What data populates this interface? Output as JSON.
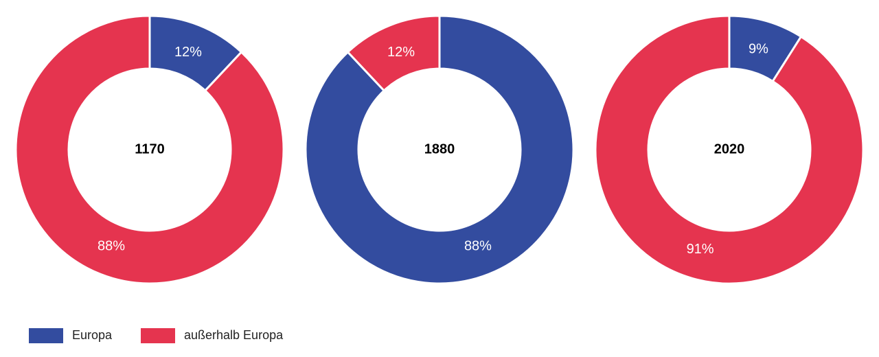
{
  "chart_data": [
    {
      "type": "pie",
      "title": "1170",
      "categories": [
        "Europa",
        "außerhalb Europa"
      ],
      "colors": [
        "#334c9f",
        "#e5344f"
      ],
      "values": [
        12,
        88
      ],
      "value_labels": [
        "12%",
        "88%"
      ]
    },
    {
      "type": "pie",
      "title": "1880",
      "categories": [
        "Europa",
        "außerhalb Europa"
      ],
      "colors": [
        "#334c9f",
        "#e5344f"
      ],
      "values": [
        88,
        12
      ],
      "value_labels": [
        "88%",
        "12%"
      ]
    },
    {
      "type": "pie",
      "title": "2020",
      "categories": [
        "Europa",
        "außerhalb Europa"
      ],
      "colors": [
        "#334c9f",
        "#e5344f"
      ],
      "values": [
        9,
        91
      ],
      "value_labels": [
        "9%",
        "91%"
      ]
    }
  ]
}
